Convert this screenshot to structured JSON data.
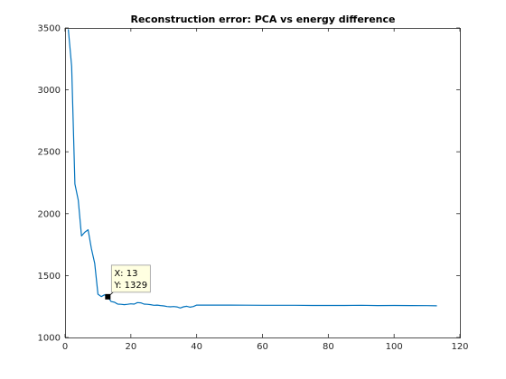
{
  "colors": {
    "line": "#0072BD",
    "axes": "#262626",
    "datatip_bg": "#FFFFE1",
    "datatip_border": "#9A9A9A",
    "marker": "#000000"
  },
  "chart_data": {
    "type": "line",
    "title": "Reconstruction error: PCA vs energy difference",
    "xlabel": "",
    "ylabel": "",
    "xlim": [
      0,
      120
    ],
    "ylim": [
      1000,
      3500
    ],
    "xticks": [
      0,
      20,
      40,
      60,
      80,
      100,
      120
    ],
    "yticks": [
      1000,
      1500,
      2000,
      2500,
      3000,
      3500
    ],
    "grid": false,
    "legend": "none",
    "series": [
      {
        "x": [
          1,
          2,
          3,
          4,
          5,
          6,
          7,
          8,
          9,
          10,
          11,
          12,
          13,
          14,
          15,
          16,
          17,
          18,
          19,
          20,
          21,
          22,
          23,
          24,
          25,
          26,
          27,
          28,
          29,
          30,
          31,
          32,
          33,
          34,
          35,
          36,
          37,
          38,
          39,
          40,
          45,
          50,
          55,
          60,
          65,
          70,
          75,
          80,
          85,
          90,
          95,
          100,
          105,
          110,
          113
        ],
        "y": [
          3490,
          3190,
          2240,
          2110,
          1820,
          1850,
          1870,
          1720,
          1600,
          1350,
          1330,
          1345,
          1329,
          1290,
          1285,
          1270,
          1268,
          1265,
          1268,
          1272,
          1270,
          1282,
          1280,
          1270,
          1268,
          1265,
          1260,
          1262,
          1258,
          1255,
          1250,
          1248,
          1250,
          1247,
          1238,
          1248,
          1252,
          1245,
          1250,
          1262,
          1262,
          1262,
          1261,
          1260,
          1260,
          1260,
          1259,
          1259,
          1259,
          1260,
          1258,
          1259,
          1258,
          1257,
          1256
        ]
      }
    ],
    "datatip": {
      "x": 13,
      "y": 1329,
      "x_text": "X: 13",
      "y_text": "Y: 1329"
    }
  }
}
